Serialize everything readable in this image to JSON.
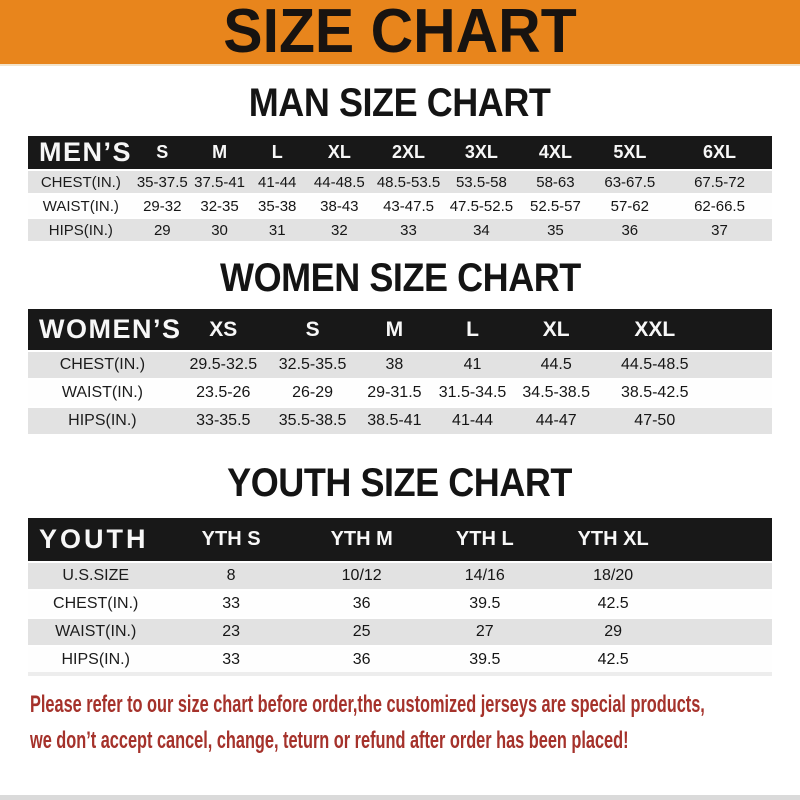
{
  "banner": {
    "title": "SIZE CHART",
    "bg_color": "#E8851C",
    "text_color": "#181310"
  },
  "sections": [
    {
      "title": "MAN SIZE CHART",
      "header_label": "MEN’S",
      "columns": [
        "S",
        "M",
        "L",
        "XL",
        "2XL",
        "3XL",
        "4XL",
        "5XL",
        "6XL"
      ],
      "rows": [
        {
          "label": "CHEST(IN.)",
          "values": [
            "35-37.5",
            "37.5-41",
            "41-44",
            "44-48.5",
            "48.5-53.5",
            "53.5-58",
            "58-63",
            "63-67.5",
            "67.5-72"
          ]
        },
        {
          "label": "WAIST(IN.)",
          "values": [
            "29-32",
            "32-35",
            "35-38",
            "38-43",
            "43-47.5",
            "47.5-52.5",
            "52.5-57",
            "57-62",
            "62-66.5"
          ]
        },
        {
          "label": "HIPS(IN.)",
          "values": [
            "29",
            "30",
            "31",
            "32",
            "33",
            "34",
            "35",
            "36",
            "37"
          ]
        }
      ]
    },
    {
      "title": "WOMEN SIZE CHART",
      "header_label": "WOMEN’S",
      "columns": [
        "XS",
        "S",
        "M",
        "L",
        "XL",
        "XXL"
      ],
      "rows": [
        {
          "label": "CHEST(IN.)",
          "values": [
            "29.5-32.5",
            "32.5-35.5",
            "38",
            "41",
            "44.5",
            "44.5-48.5"
          ]
        },
        {
          "label": "WAIST(IN.)",
          "values": [
            "23.5-26",
            "26-29",
            "29-31.5",
            "31.5-34.5",
            "34.5-38.5",
            "38.5-42.5"
          ]
        },
        {
          "label": "HIPS(IN.)",
          "values": [
            "33-35.5",
            "35.5-38.5",
            "38.5-41",
            "41-44",
            "44-47",
            "47-50"
          ]
        }
      ]
    },
    {
      "title": "YOUTH SIZE CHART",
      "header_label": "YOUTH",
      "columns": [
        "YTH S",
        "YTH M",
        "YTH L",
        "YTH XL"
      ],
      "rows": [
        {
          "label": "U.S.SIZE",
          "values": [
            "8",
            "10/12",
            "14/16",
            "18/20"
          ]
        },
        {
          "label": "CHEST(IN.)",
          "values": [
            "33",
            "36",
            "39.5",
            "42.5"
          ]
        },
        {
          "label": "WAIST(IN.)",
          "values": [
            "23",
            "25",
            "27",
            "29"
          ]
        },
        {
          "label": "HIPS(IN.)",
          "values": [
            "33",
            "36",
            "39.5",
            "42.5"
          ]
        }
      ]
    }
  ],
  "footer": {
    "line1": "Please refer to our size chart before order,the customized jerseys are special products,",
    "line2": "we don’t accept cancel, change, teturn or refund after order has been placed!",
    "text_color": "#A5322B"
  },
  "colors": {
    "banner_orange": "#E8851C",
    "header_band_black": "#181818",
    "row_stripe_gray": "#E2E2E2",
    "footer_red": "#A5322B"
  }
}
